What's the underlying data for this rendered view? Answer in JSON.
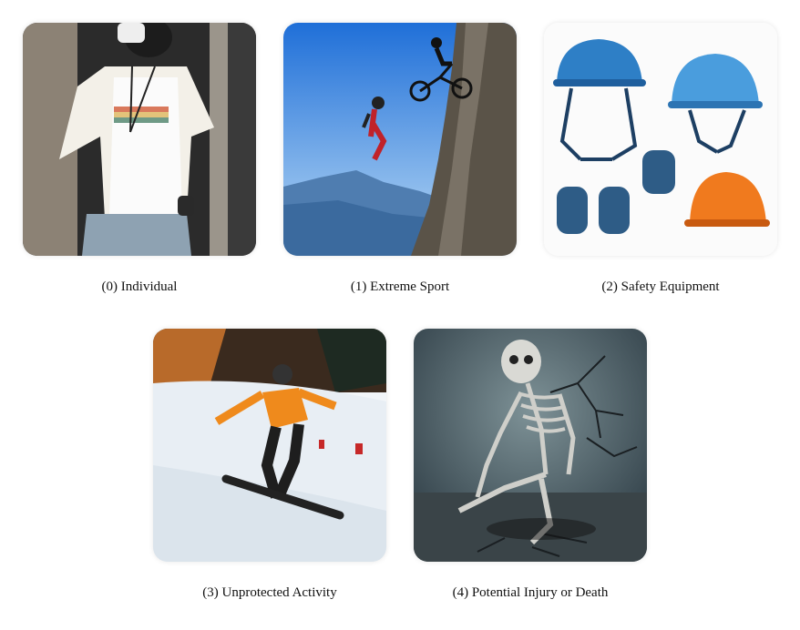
{
  "panels": [
    {
      "index": "(0)",
      "label": "Individual",
      "caption": "(0) Individual",
      "icon": "person-photo"
    },
    {
      "index": "(1)",
      "label": "Extreme Sport",
      "caption": "(1) Extreme Sport",
      "icon": "bike-jump-photo"
    },
    {
      "index": "(2)",
      "label": "Safety Equipment",
      "caption": "(2) Safety Equipment",
      "icon": "helmet-pads-photo"
    },
    {
      "index": "(3)",
      "label": "Unprotected Activity",
      "caption": "(3) Unprotected Activity",
      "icon": "snowboarder-photo"
    },
    {
      "index": "(4)",
      "label": "Potential Injury or Death",
      "caption": "(4) Potential Injury or Death",
      "icon": "skeleton-photo"
    }
  ]
}
